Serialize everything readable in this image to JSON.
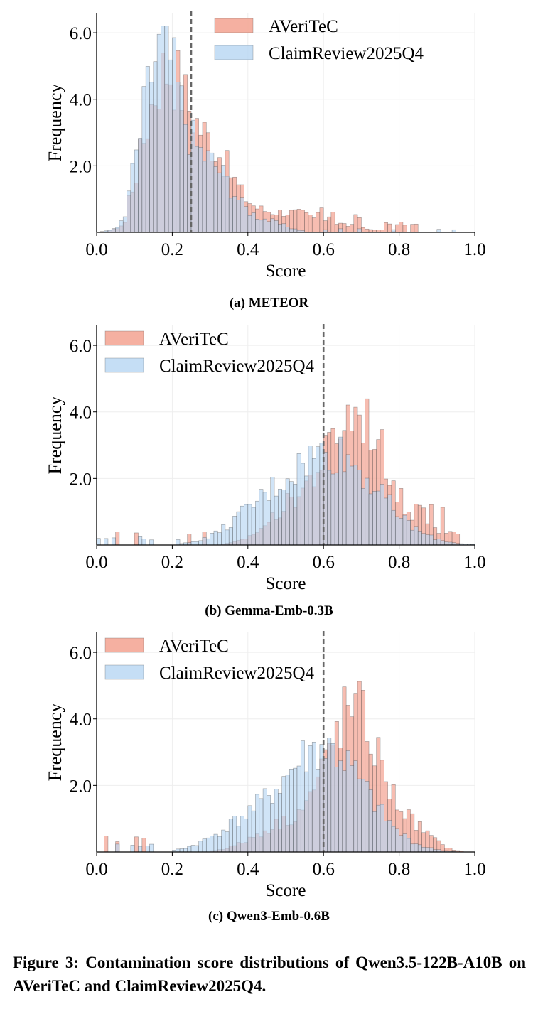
{
  "colors": {
    "averitec": "#f4a797",
    "claimreview": "#b7d6f2",
    "edge": "#222222",
    "threshold": "#666666"
  },
  "charts": [
    {
      "type": "histogram",
      "caption": "(a) METEOR",
      "xlabel": "Score",
      "ylabel": "Frequency",
      "xlim": [
        0,
        1.0
      ],
      "ylim": [
        0,
        6.6
      ],
      "xticks": [
        "0.0",
        "0.2",
        "0.4",
        "0.6",
        "0.8",
        "1.0"
      ],
      "yticks": [
        "2.0",
        "4.0",
        "6.0"
      ],
      "threshold": 0.25,
      "legend": "upper right",
      "center": 0.19,
      "shape": "meteor"
    },
    {
      "type": "histogram",
      "caption": "(b) Gemma-Emb-0.3B",
      "xlabel": "Score",
      "ylabel": "Frequency",
      "xlim": [
        0,
        1.0
      ],
      "ylim": [
        0,
        6.6
      ],
      "xticks": [
        "0.0",
        "0.2",
        "0.4",
        "0.6",
        "0.8",
        "1.0"
      ],
      "yticks": [
        "2.0",
        "4.0",
        "6.0"
      ],
      "threshold": 0.6,
      "legend": "upper left",
      "shape": "gemma"
    },
    {
      "type": "histogram",
      "caption": "(c) Qwen3-Emb-0.6B",
      "xlabel": "Score",
      "ylabel": "Frequency",
      "xlim": [
        0,
        1.0
      ],
      "ylim": [
        0,
        6.6
      ],
      "xticks": [
        "0.0",
        "0.2",
        "0.4",
        "0.6",
        "0.8",
        "1.0"
      ],
      "yticks": [
        "2.0",
        "4.0",
        "6.0"
      ],
      "threshold": 0.6,
      "legend": "upper left",
      "shape": "qwen"
    }
  ],
  "chart_data": [
    {
      "type": "bar",
      "title": "(a) METEOR",
      "xlabel": "Score",
      "ylabel": "Frequency",
      "xlim": [
        0,
        1.0
      ],
      "ylim": [
        0,
        6.6
      ],
      "series": [
        {
          "name": "AVeriTeC",
          "peak_x": 0.18,
          "peak_y": 5.2
        },
        {
          "name": "ClaimReview2025Q4",
          "peak_x": 0.17,
          "peak_y": 6.1
        }
      ],
      "threshold": 0.25
    },
    {
      "type": "bar",
      "title": "(b) Gemma-Emb-0.3B",
      "xlabel": "Score",
      "ylabel": "Frequency",
      "xlim": [
        0,
        1.0
      ],
      "ylim": [
        0,
        6.6
      ],
      "series": [
        {
          "name": "AVeriTeC",
          "peak_x": 0.67,
          "peak_y": 4.5
        },
        {
          "name": "ClaimReview2025Q4",
          "peak_x": 0.6,
          "peak_y": 3.0
        }
      ],
      "threshold": 0.6
    },
    {
      "type": "bar",
      "title": "(c) Qwen3-Emb-0.6B",
      "xlabel": "Score",
      "ylabel": "Frequency",
      "xlim": [
        0,
        1.0
      ],
      "ylim": [
        0,
        6.6
      ],
      "series": [
        {
          "name": "AVeriTeC",
          "peak_x": 0.7,
          "peak_y": 5.1
        },
        {
          "name": "ClaimReview2025Q4",
          "peak_x": 0.6,
          "peak_y": 3.5
        }
      ],
      "threshold": 0.6
    }
  ],
  "legend": {
    "a": "AVeriTeC",
    "b": "ClaimReview2025Q4"
  },
  "figure_caption": "Figure 3: Contamination score distributions of Qwen3.5-122B-A10B on AVeriTeC and ClaimReview2025Q4."
}
